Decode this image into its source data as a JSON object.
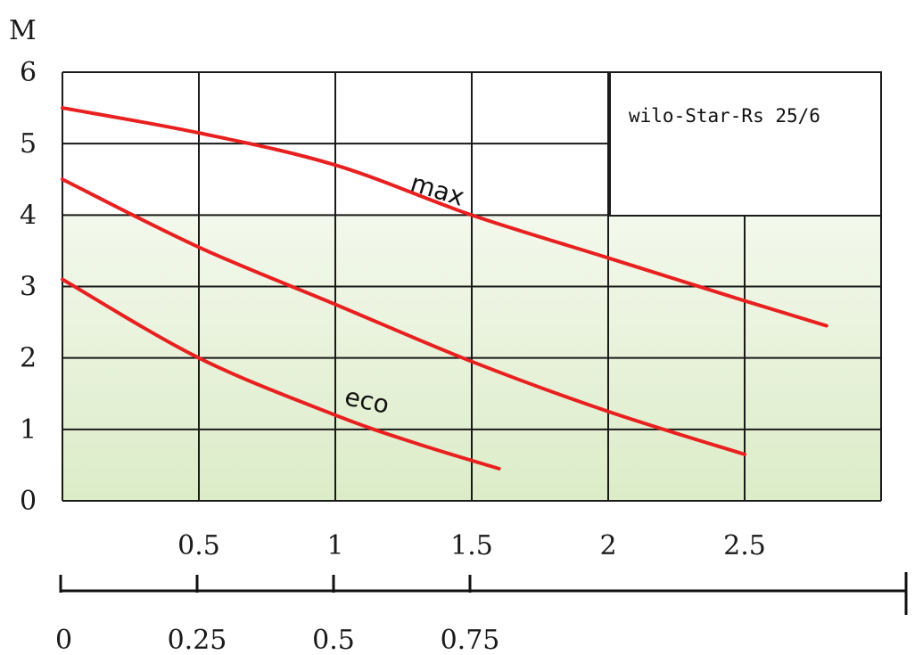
{
  "chart_data": {
    "type": "line",
    "title": "",
    "legend_box_text": "wilo-Star-Rs 25/6",
    "ylabel": "M",
    "xlabel": "",
    "ylim": [
      0,
      6
    ],
    "xlim": [
      0,
      3
    ],
    "y_ticks": [
      "0",
      "1",
      "2",
      "3",
      "4",
      "5",
      "6"
    ],
    "x_ticks": [
      "0.5",
      "1",
      "1.5",
      "2",
      "2.5"
    ],
    "x_ticks_values": [
      0.5,
      1,
      1.5,
      2,
      2.5
    ],
    "secondary_axis_ticks": [
      "0",
      "0.25",
      "0.5",
      "0.75"
    ],
    "secondary_axis_values": [
      0,
      0.25,
      0.5,
      0.75
    ],
    "grid": true,
    "colors": {
      "curve": "#e8201f",
      "grid": "#1a1a1a",
      "shade_top": "#f3f8ec",
      "shade_bottom": "#dcecc8"
    },
    "series": [
      {
        "name": "max",
        "x": [
          0,
          0.5,
          1.0,
          1.5,
          2.0,
          2.5,
          2.8
        ],
        "y": [
          5.5,
          5.15,
          4.7,
          4.0,
          3.4,
          2.8,
          2.45
        ]
      },
      {
        "name": "",
        "x": [
          0,
          0.5,
          1.0,
          1.5,
          2.0,
          2.5
        ],
        "y": [
          4.5,
          3.55,
          2.75,
          1.95,
          1.25,
          0.65
        ]
      },
      {
        "name": "eco",
        "x": [
          0,
          0.5,
          1.0,
          1.3,
          1.6
        ],
        "y": [
          3.1,
          2.0,
          1.2,
          0.8,
          0.45
        ]
      }
    ]
  }
}
